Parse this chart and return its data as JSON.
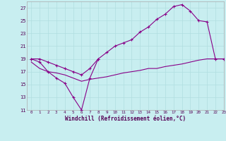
{
  "background_color": "#c8eef0",
  "grid_color": "#b0dde0",
  "line_color": "#880088",
  "xlabel": "Windchill (Refroidissement éolien,°C)",
  "xlim": [
    -0.5,
    23
  ],
  "ylim": [
    11,
    28
  ],
  "yticks": [
    11,
    13,
    15,
    17,
    19,
    21,
    23,
    25,
    27
  ],
  "xticks": [
    0,
    1,
    2,
    3,
    4,
    5,
    6,
    7,
    8,
    9,
    10,
    11,
    12,
    13,
    14,
    15,
    16,
    17,
    18,
    19,
    20,
    21,
    22,
    23
  ],
  "series": [
    {
      "x": [
        0,
        1,
        2,
        3,
        4,
        5,
        6,
        7,
        8
      ],
      "y": [
        19,
        18.5,
        17,
        16,
        15.2,
        13,
        11,
        16,
        19
      ]
    },
    {
      "x": [
        0,
        1,
        2,
        3,
        4,
        5,
        6,
        7,
        8,
        9,
        10,
        11,
        12,
        13,
        14,
        15,
        16,
        17,
        18,
        19,
        20,
        21,
        22,
        23
      ],
      "y": [
        18.5,
        17.5,
        17,
        16.8,
        16.5,
        16,
        15.5,
        15.8,
        16,
        16.2,
        16.5,
        16.8,
        17,
        17.2,
        17.5,
        17.5,
        17.8,
        18,
        18.2,
        18.5,
        18.8,
        19,
        19,
        19
      ]
    },
    {
      "x": [
        0,
        1,
        2,
        3,
        4,
        5,
        6,
        7,
        8,
        9,
        10,
        11,
        12,
        13,
        14,
        15,
        16,
        17,
        18,
        19,
        20,
        21,
        22,
        23
      ],
      "y": [
        19,
        19,
        18.5,
        18,
        17.5,
        17,
        16.5,
        17.5,
        19,
        20,
        21,
        21.5,
        22,
        23.2,
        24,
        25.2,
        26,
        27.2,
        27.5,
        26.5,
        25,
        24.8,
        19,
        19
      ]
    }
  ]
}
